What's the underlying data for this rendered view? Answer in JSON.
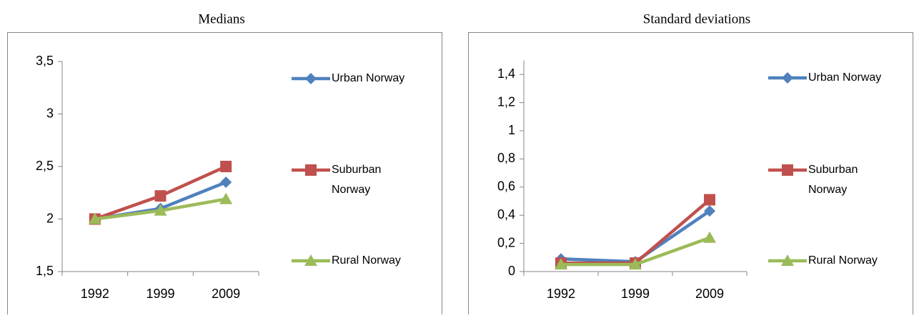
{
  "chart_data": [
    {
      "type": "line",
      "title": "Medians",
      "categories": [
        "1992",
        "1999",
        "2009"
      ],
      "ylim": [
        1.5,
        3.5
      ],
      "yticks": [
        {
          "value": 1.5,
          "label": "1,5"
        },
        2,
        {
          "value": 2.5,
          "label": "2,5"
        },
        3,
        {
          "value": 3.5,
          "label": "3,5"
        }
      ],
      "grid": false,
      "series": [
        {
          "name": "Urban Norway",
          "color": "#4f81bd",
          "marker": "diamond",
          "values": [
            2.0,
            2.1,
            2.35
          ]
        },
        {
          "name": "Suburban Norway",
          "color": "#c0504d",
          "marker": "square",
          "values": [
            2.0,
            2.22,
            2.5
          ]
        },
        {
          "name": "Rural Norway",
          "color": "#9bbb59",
          "marker": "triangle",
          "values": [
            2.0,
            2.08,
            2.19
          ]
        }
      ]
    },
    {
      "type": "line",
      "title": "Standard deviations",
      "categories": [
        "1992",
        "1999",
        "2009"
      ],
      "ylim": [
        0,
        1.5
      ],
      "yticks": [
        0,
        {
          "value": 0.2,
          "label": "0,2"
        },
        {
          "value": 0.4,
          "label": "0,4"
        },
        {
          "value": 0.6,
          "label": "0,6"
        },
        {
          "value": 0.8,
          "label": "0,8"
        },
        1,
        {
          "value": 1.2,
          "label": "1,2"
        },
        {
          "value": 1.4,
          "label": "1,4"
        }
      ],
      "grid": false,
      "series": [
        {
          "name": "Urban Norway",
          "color": "#4f81bd",
          "marker": "diamond",
          "values": [
            0.09,
            0.07,
            0.43
          ]
        },
        {
          "name": "Suburban Norway",
          "color": "#c0504d",
          "marker": "square",
          "values": [
            0.06,
            0.06,
            0.51
          ]
        },
        {
          "name": "Rural Norway",
          "color": "#9bbb59",
          "marker": "triangle",
          "values": [
            0.05,
            0.05,
            0.24
          ]
        }
      ]
    }
  ]
}
